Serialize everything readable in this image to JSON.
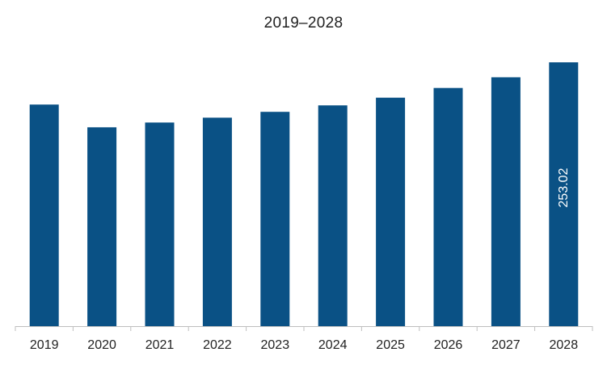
{
  "chart_data": {
    "type": "bar",
    "title": "2019–2028",
    "xlabel": "",
    "ylabel": "",
    "categories": [
      "2019",
      "2020",
      "2021",
      "2022",
      "2023",
      "2024",
      "2025",
      "2026",
      "2027",
      "2028"
    ],
    "values": [
      212.5,
      190.7,
      195.3,
      199.9,
      205.5,
      211.7,
      219.1,
      228.4,
      238.7,
      253.02
    ],
    "data_labels": [
      {
        "index": 9,
        "text": "253.02"
      }
    ],
    "ylim": [
      0,
      253.02
    ],
    "grid": false,
    "legend": "none",
    "bar_color": "#0a5185",
    "axis_color": "#bfbfbf"
  }
}
